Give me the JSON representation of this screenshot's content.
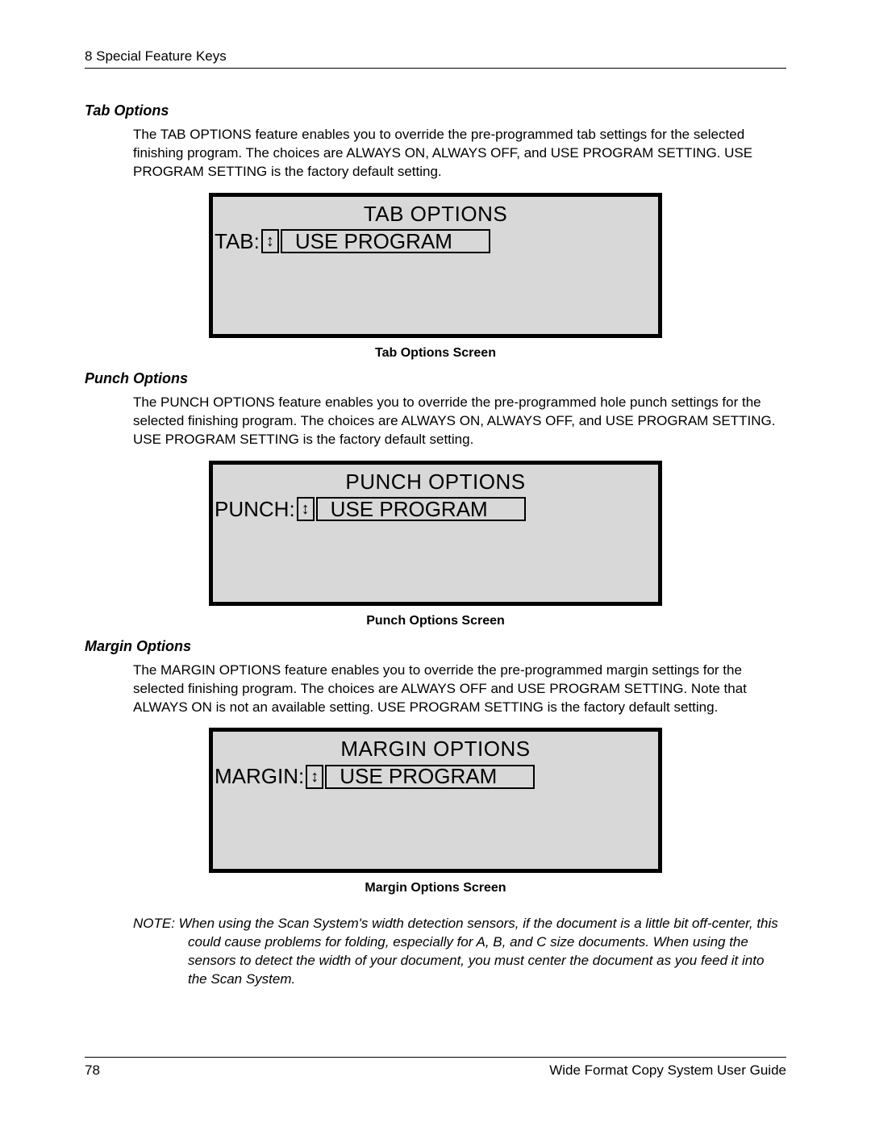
{
  "chapter_header": "8 Special Feature Keys",
  "sections": {
    "tab": {
      "heading": "Tab Options",
      "paragraph": "The TAB OPTIONS feature enables you to override the pre-programmed tab settings for the selected finishing program.  The choices are ALWAYS ON, ALWAYS OFF, and USE PROGRAM SETTING.  USE PROGRAM SETTING is the factory default setting.",
      "screen": {
        "title": "TAB OPTIONS",
        "label": "TAB:",
        "value": "USE PROGRAM",
        "value_box_width": 270
      },
      "caption": "Tab Options Screen"
    },
    "punch": {
      "heading": "Punch Options",
      "paragraph": "The PUNCH OPTIONS feature enables you to override the pre-programmed hole punch settings for the selected finishing program.  The choices are ALWAYS ON, ALWAYS OFF, and USE PROGRAM SETTING.  USE PROGRAM SETTING is the factory default setting.",
      "screen": {
        "title": "PUNCH OPTIONS",
        "label": "PUNCH:",
        "value": "USE PROGRAM",
        "value_box_width": 270
      },
      "caption": "Punch Options Screen"
    },
    "margin": {
      "heading": "Margin Options",
      "paragraph": "The MARGIN OPTIONS feature enables you to override the pre-programmed margin settings for the selected finishing program.  The choices are ALWAYS OFF and USE PROGRAM SETTING.  Note that ALWAYS ON is not an available setting.  USE PROGRAM SETTING is the factory default setting.",
      "screen": {
        "title": "MARGIN OPTIONS",
        "label": "MARGIN:",
        "value": "USE PROGRAM",
        "value_box_width": 270
      },
      "caption": "Margin Options Screen"
    }
  },
  "note": "NOTE:  When using the Scan System's width detection sensors, if the document is a little bit off-center, this could cause problems for folding, especially for A, B, and C size documents.  When using the sensors to detect the width of your document, you must center the document as you feed it into the Scan System.",
  "footer": {
    "page_number": "78",
    "doc_title": "Wide Format Copy System User Guide"
  },
  "style": {
    "lcd_bg": "#d8d8d8",
    "lcd_border": "#000000",
    "page_bg": "#ffffff",
    "text_color": "#000000"
  }
}
